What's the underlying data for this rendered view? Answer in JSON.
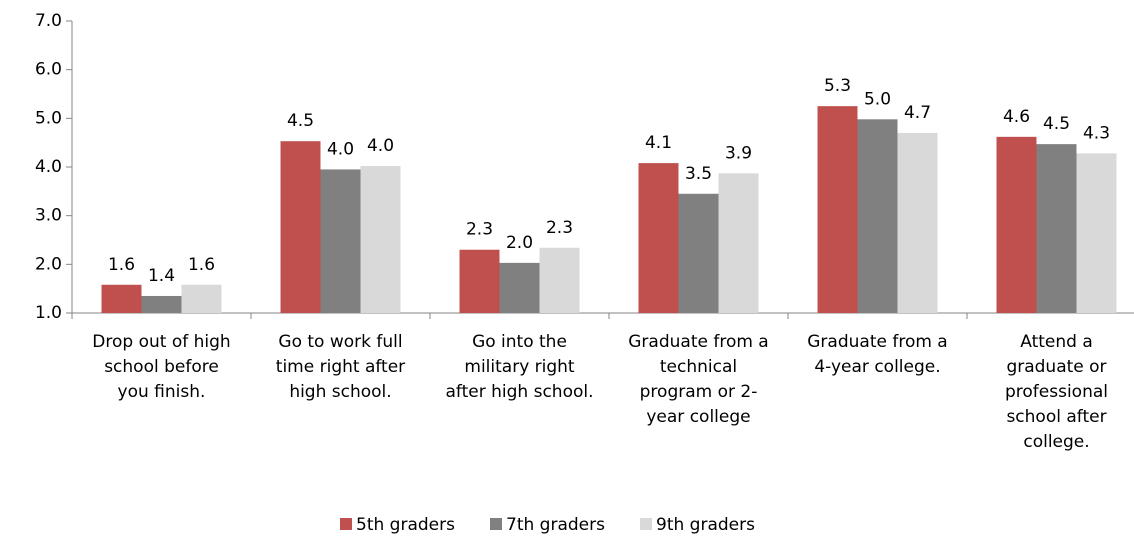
{
  "chart_data": {
    "type": "bar",
    "categories": [
      "Drop out of high school before you finish.",
      "Go to work full time right after high school.",
      "Go into the military right after high school.",
      "Graduate from a technical program or 2-year college",
      "Graduate from a 4-year college.",
      "Attend a graduate or professional school after college."
    ],
    "series": [
      {
        "name": "5th graders",
        "color": "#c0504d",
        "values": [
          1.58,
          4.53,
          2.3,
          4.08,
          5.25,
          4.62
        ],
        "value_labels": [
          "1.6",
          "4.5",
          "2.3",
          "4.1",
          "5.3",
          "4.6"
        ]
      },
      {
        "name": "7th graders",
        "color": "#808080",
        "values": [
          1.35,
          3.95,
          2.03,
          3.45,
          4.98,
          4.47
        ],
        "value_labels": [
          "1.4",
          "4.0",
          "2.0",
          "3.5",
          "5.0",
          "4.5"
        ]
      },
      {
        "name": "9th graders",
        "color": "#d9d9d9",
        "values": [
          1.58,
          4.02,
          2.34,
          3.87,
          4.7,
          4.28
        ],
        "value_labels": [
          "1.6",
          "4.0",
          "2.3",
          "3.9",
          "4.7",
          "4.3"
        ]
      }
    ],
    "ylim": [
      1,
      7
    ],
    "yticks": [
      {
        "value": 1,
        "label": "1.0"
      },
      {
        "value": 2,
        "label": "2.0"
      },
      {
        "value": 3,
        "label": "3.0"
      },
      {
        "value": 4,
        "label": "4.0"
      },
      {
        "value": 5,
        "label": "5.0"
      },
      {
        "value": 6,
        "label": "6.0"
      },
      {
        "value": 7,
        "label": "7.0"
      }
    ],
    "legend": "bottom"
  }
}
